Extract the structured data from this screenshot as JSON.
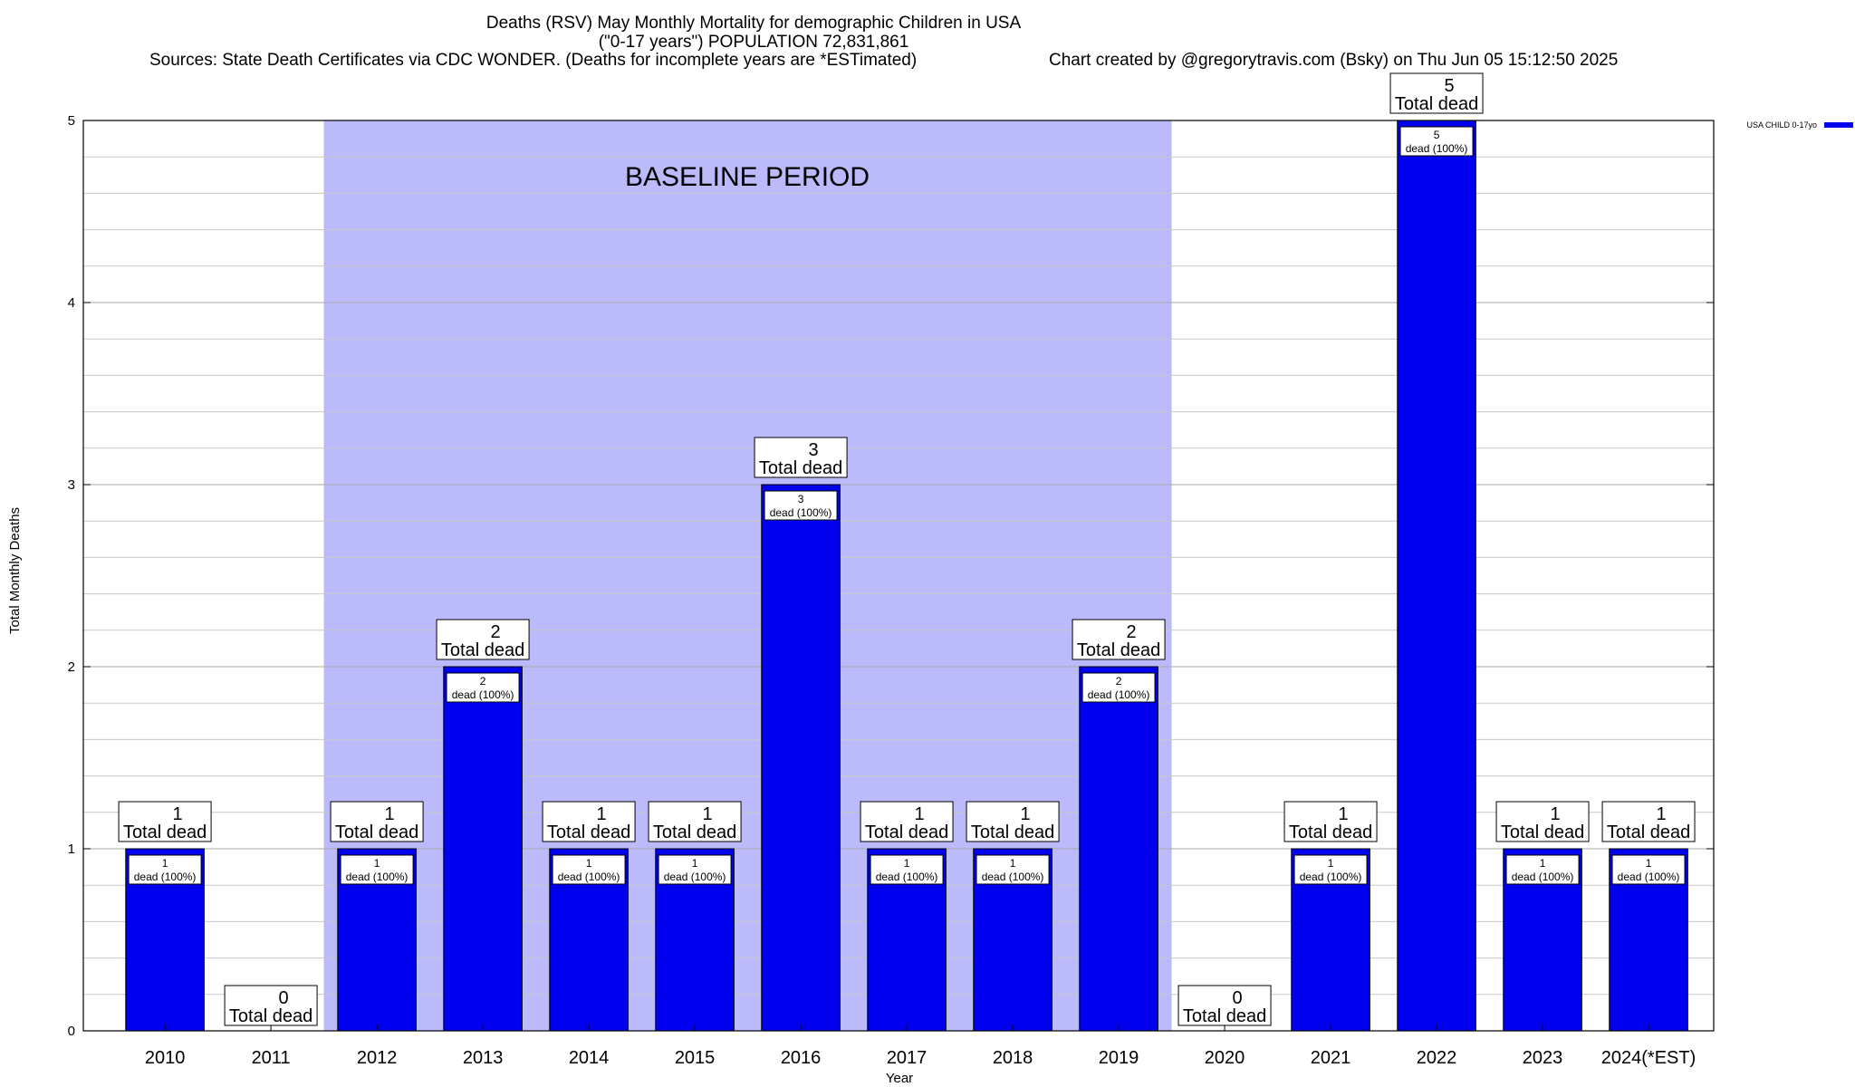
{
  "title": {
    "line1": "Deaths (RSV) May Monthly Mortality for demographic Children in USA",
    "line2": "(\"0-17 years\") POPULATION 72,831,861",
    "sources": "Sources: State Death Certificates via CDC WONDER. (Deaths for incomplete years are *ESTimated)",
    "credit": "Chart created by @gregorytravis.com (Bsky) on Thu Jun 05 15:12:50 2025"
  },
  "chart_data": {
    "type": "bar",
    "categories": [
      "2010",
      "2011",
      "2012",
      "2013",
      "2014",
      "2015",
      "2016",
      "2017",
      "2018",
      "2019",
      "2020",
      "2021",
      "2022",
      "2023",
      "2024(*EST)"
    ],
    "series": [
      {
        "name": "USA CHILD 0-17yo",
        "values": [
          1,
          0,
          1,
          2,
          1,
          1,
          3,
          1,
          1,
          2,
          0,
          1,
          5,
          1,
          1
        ]
      }
    ],
    "xlabel": "Year",
    "ylabel": "Total Monthly Deaths",
    "ylim": [
      0,
      5
    ],
    "yticks": [
      0,
      1,
      2,
      3,
      4,
      5
    ],
    "grid": true,
    "legend_position": "top-right",
    "total_label": "Total dead",
    "inner_label": "dead (100%)",
    "baseline": {
      "label": "BASELINE PERIOD",
      "start_category": "2012",
      "end_category": "2019"
    },
    "colors": {
      "bar": "#0000ee",
      "baseline_shade": "#bbbbfb",
      "grid": "#c8c8c8"
    }
  }
}
